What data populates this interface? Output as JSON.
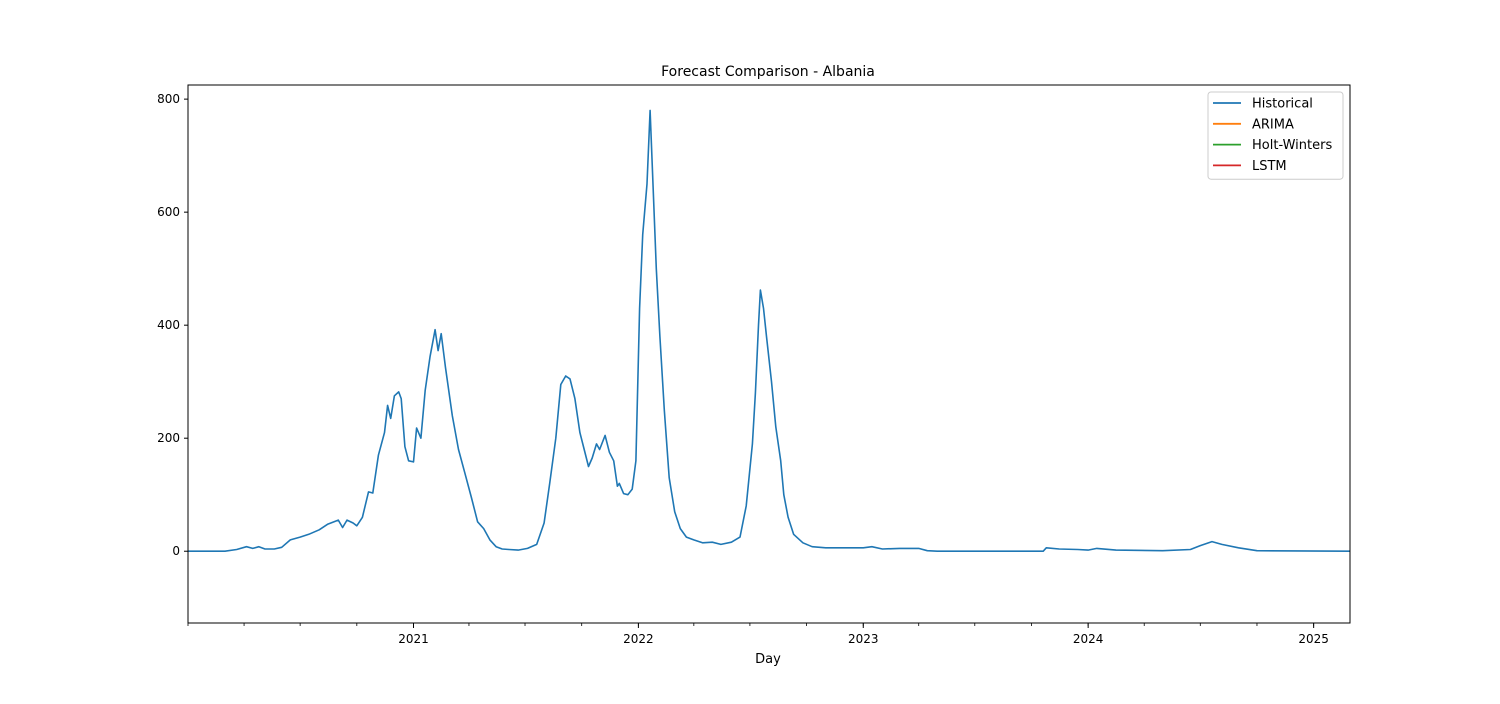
{
  "chart_data": {
    "type": "line",
    "title": "Forecast Comparison - Albania",
    "xlabel": "Day",
    "ylabel": "",
    "xlim": [
      "2020-01-01",
      "2025-03-01"
    ],
    "ylim": [
      -127,
      825
    ],
    "x_ticks": [
      {
        "label": "2021",
        "x": "2021-01-01"
      },
      {
        "label": "2022",
        "x": "2022-01-01"
      },
      {
        "label": "2023",
        "x": "2023-01-01"
      },
      {
        "label": "2024",
        "x": "2024-01-01"
      },
      {
        "label": "2025",
        "x": "2025-01-01"
      }
    ],
    "y_ticks": [
      0,
      200,
      400,
      600,
      800
    ],
    "grid": false,
    "legend_position": "top-right",
    "series": [
      {
        "name": "Historical",
        "color": "#1f77b4",
        "points": [
          [
            "2020-01-01",
            0
          ],
          [
            "2020-03-01",
            0
          ],
          [
            "2020-03-20",
            3
          ],
          [
            "2020-04-05",
            8
          ],
          [
            "2020-04-15",
            5
          ],
          [
            "2020-04-25",
            8
          ],
          [
            "2020-05-05",
            4
          ],
          [
            "2020-05-20",
            4
          ],
          [
            "2020-06-01",
            7
          ],
          [
            "2020-06-15",
            20
          ],
          [
            "2020-07-01",
            25
          ],
          [
            "2020-07-15",
            30
          ],
          [
            "2020-08-01",
            38
          ],
          [
            "2020-08-15",
            48
          ],
          [
            "2020-09-01",
            55
          ],
          [
            "2020-09-08",
            42
          ],
          [
            "2020-09-15",
            55
          ],
          [
            "2020-09-25",
            50
          ],
          [
            "2020-10-01",
            45
          ],
          [
            "2020-10-10",
            60
          ],
          [
            "2020-10-20",
            105
          ],
          [
            "2020-10-27",
            103
          ],
          [
            "2020-11-05",
            170
          ],
          [
            "2020-11-15",
            210
          ],
          [
            "2020-11-20",
            258
          ],
          [
            "2020-11-25",
            235
          ],
          [
            "2020-12-01",
            275
          ],
          [
            "2020-12-08",
            282
          ],
          [
            "2020-12-12",
            270
          ],
          [
            "2020-12-18",
            185
          ],
          [
            "2020-12-24",
            160
          ],
          [
            "2021-01-01",
            158
          ],
          [
            "2021-01-06",
            218
          ],
          [
            "2021-01-13",
            200
          ],
          [
            "2021-01-20",
            285
          ],
          [
            "2021-01-28",
            345
          ],
          [
            "2021-02-05",
            392
          ],
          [
            "2021-02-10",
            355
          ],
          [
            "2021-02-15",
            385
          ],
          [
            "2021-02-22",
            325
          ],
          [
            "2021-03-05",
            240
          ],
          [
            "2021-03-15",
            180
          ],
          [
            "2021-03-25",
            140
          ],
          [
            "2021-04-05",
            95
          ],
          [
            "2021-04-15",
            52
          ],
          [
            "2021-04-25",
            40
          ],
          [
            "2021-05-05",
            20
          ],
          [
            "2021-05-15",
            8
          ],
          [
            "2021-05-25",
            4
          ],
          [
            "2021-06-05",
            3
          ],
          [
            "2021-06-20",
            2
          ],
          [
            "2021-07-05",
            5
          ],
          [
            "2021-07-20",
            12
          ],
          [
            "2021-08-01",
            50
          ],
          [
            "2021-08-10",
            120
          ],
          [
            "2021-08-20",
            200
          ],
          [
            "2021-08-28",
            295
          ],
          [
            "2021-09-05",
            310
          ],
          [
            "2021-09-12",
            305
          ],
          [
            "2021-09-20",
            270
          ],
          [
            "2021-09-28",
            210
          ],
          [
            "2021-10-05",
            180
          ],
          [
            "2021-10-12",
            150
          ],
          [
            "2021-10-18",
            165
          ],
          [
            "2021-10-25",
            190
          ],
          [
            "2021-10-30",
            180
          ],
          [
            "2021-11-08",
            205
          ],
          [
            "2021-11-15",
            175
          ],
          [
            "2021-11-22",
            160
          ],
          [
            "2021-11-28",
            115
          ],
          [
            "2021-12-01",
            120
          ],
          [
            "2021-12-08",
            102
          ],
          [
            "2021-12-15",
            100
          ],
          [
            "2021-12-22",
            110
          ],
          [
            "2021-12-28",
            160
          ],
          [
            "2022-01-03",
            430
          ],
          [
            "2022-01-08",
            560
          ],
          [
            "2022-01-15",
            650
          ],
          [
            "2022-01-20",
            780
          ],
          [
            "2022-01-25",
            640
          ],
          [
            "2022-01-30",
            500
          ],
          [
            "2022-02-05",
            380
          ],
          [
            "2022-02-12",
            250
          ],
          [
            "2022-02-20",
            130
          ],
          [
            "2022-03-01",
            70
          ],
          [
            "2022-03-10",
            40
          ],
          [
            "2022-03-20",
            25
          ],
          [
            "2022-04-01",
            20
          ],
          [
            "2022-04-15",
            15
          ],
          [
            "2022-05-01",
            16
          ],
          [
            "2022-05-15",
            12
          ],
          [
            "2022-06-01",
            16
          ],
          [
            "2022-06-15",
            25
          ],
          [
            "2022-06-25",
            80
          ],
          [
            "2022-07-05",
            190
          ],
          [
            "2022-07-10",
            280
          ],
          [
            "2022-07-15",
            400
          ],
          [
            "2022-07-18",
            462
          ],
          [
            "2022-07-23",
            430
          ],
          [
            "2022-07-28",
            380
          ],
          [
            "2022-08-05",
            300
          ],
          [
            "2022-08-12",
            220
          ],
          [
            "2022-08-20",
            160
          ],
          [
            "2022-08-25",
            100
          ],
          [
            "2022-09-01",
            60
          ],
          [
            "2022-09-10",
            30
          ],
          [
            "2022-09-25",
            15
          ],
          [
            "2022-10-10",
            8
          ],
          [
            "2022-11-01",
            6
          ],
          [
            "2022-12-01",
            6
          ],
          [
            "2023-01-01",
            6
          ],
          [
            "2023-01-15",
            8
          ],
          [
            "2023-02-01",
            4
          ],
          [
            "2023-03-01",
            5
          ],
          [
            "2023-04-01",
            5
          ],
          [
            "2023-04-15",
            1
          ],
          [
            "2023-05-01",
            0
          ],
          [
            "2023-10-20",
            0
          ],
          [
            "2023-10-25",
            6
          ],
          [
            "2023-11-15",
            4
          ],
          [
            "2023-12-15",
            3
          ],
          [
            "2024-01-01",
            2
          ],
          [
            "2024-01-15",
            5
          ],
          [
            "2024-02-15",
            2
          ],
          [
            "2024-05-01",
            1
          ],
          [
            "2024-06-15",
            3
          ],
          [
            "2024-07-01",
            10
          ],
          [
            "2024-07-20",
            17
          ],
          [
            "2024-08-05",
            12
          ],
          [
            "2024-09-01",
            6
          ],
          [
            "2024-10-01",
            1
          ],
          [
            "2025-03-01",
            0
          ]
        ]
      },
      {
        "name": "ARIMA",
        "color": "#ff7f0e",
        "points": []
      },
      {
        "name": "Holt-Winters",
        "color": "#2ca02c",
        "points": []
      },
      {
        "name": "LSTM",
        "color": "#d62728",
        "points": []
      }
    ]
  }
}
